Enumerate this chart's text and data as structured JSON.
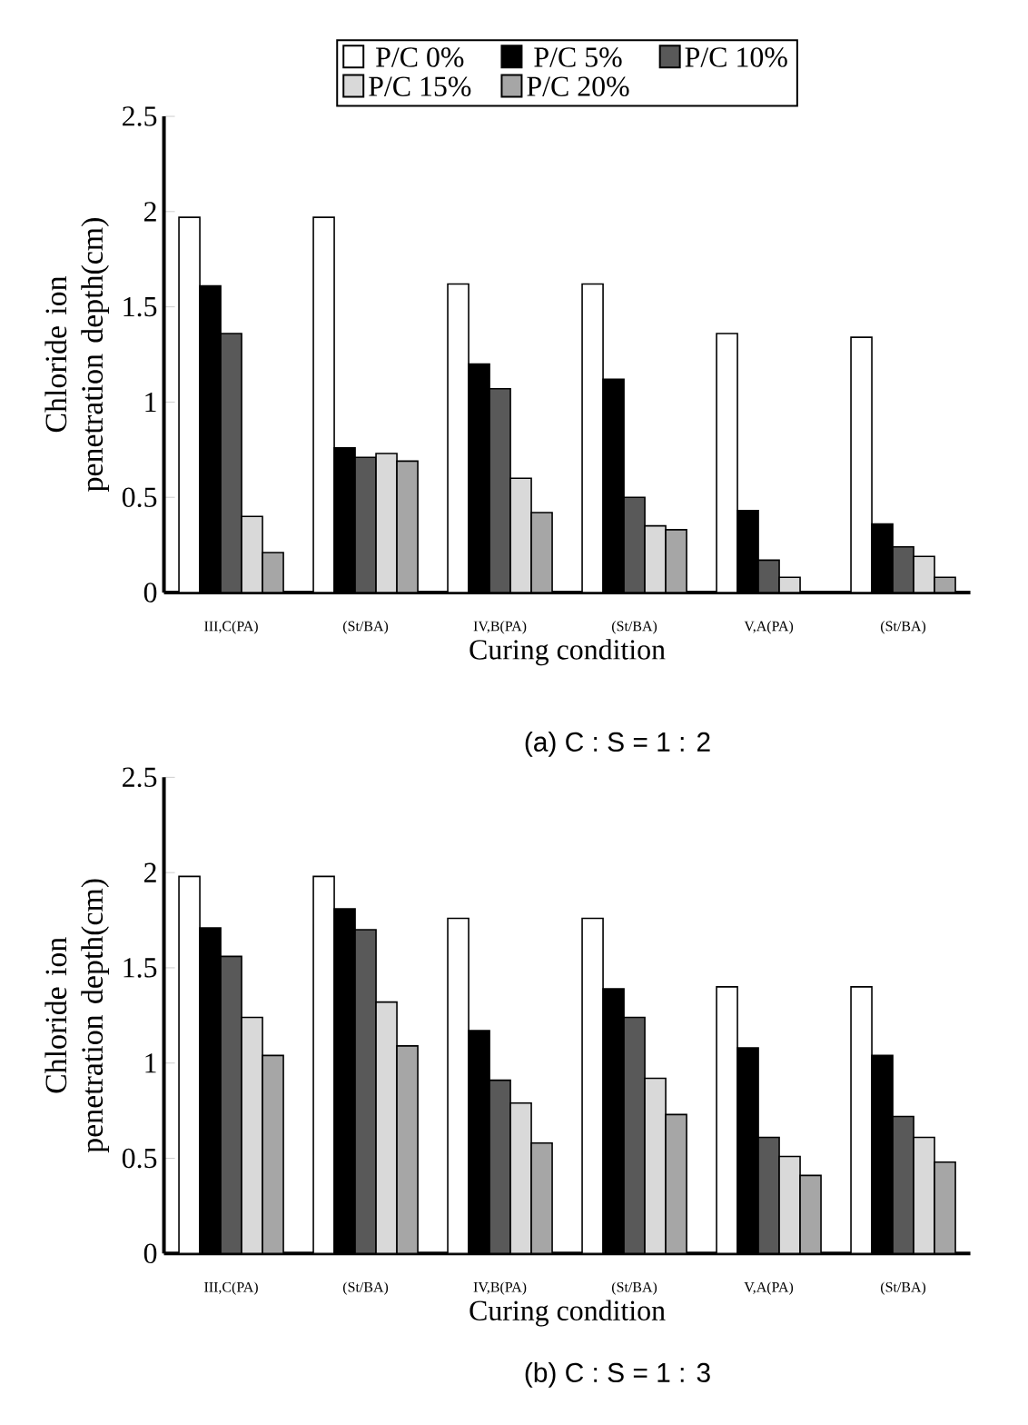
{
  "chart_data": [
    {
      "type": "bar",
      "title": "(a) C : S = 1 : 2",
      "xlabel": "Curing condition",
      "ylabel": "Chloride ion penetration depth(cm)",
      "categories": [
        "III,C(PA)",
        "(St/BA)",
        "IV,B(PA)",
        "(St/BA)",
        "V,A(PA)",
        "(St/BA)"
      ],
      "series": [
        {
          "name": "P/C 0%",
          "color": "#ffffff",
          "values": [
            1.97,
            1.97,
            1.62,
            1.62,
            1.36,
            1.34
          ]
        },
        {
          "name": "P/C 5%",
          "color": "#000000",
          "values": [
            1.61,
            0.76,
            1.2,
            1.12,
            0.43,
            0.36
          ]
        },
        {
          "name": "P/C 10%",
          "color": "#595959",
          "values": [
            1.36,
            0.71,
            1.07,
            0.5,
            0.17,
            0.24
          ]
        },
        {
          "name": "P/C 15%",
          "color": "#d9d9d9",
          "values": [
            0.4,
            0.73,
            0.6,
            0.35,
            0.08,
            0.19
          ]
        },
        {
          "name": "P/C 20%",
          "color": "#a6a6a6",
          "values": [
            0.21,
            0.69,
            0.42,
            0.33,
            null,
            0.08
          ]
        }
      ],
      "ylim": [
        0,
        2.5
      ],
      "yticks": [
        0,
        0.5,
        1,
        1.5,
        2,
        2.5
      ],
      "legend": "top"
    },
    {
      "type": "bar",
      "title": "(b) C : S = 1 : 3",
      "xlabel": "Curing condition",
      "ylabel": "Chloride ion penetration depth(cm)",
      "categories": [
        "III,C(PA)",
        "(St/BA)",
        "IV,B(PA)",
        "(St/BA)",
        "V,A(PA)",
        "(St/BA)"
      ],
      "series": [
        {
          "color": "#ffffff",
          "values": [
            1.98,
            1.98,
            1.76,
            1.76,
            1.4,
            1.4
          ]
        },
        {
          "color": "#000000",
          "values": [
            1.71,
            1.81,
            1.17,
            1.39,
            1.08,
            1.04
          ]
        },
        {
          "color": "#595959",
          "values": [
            1.56,
            1.7,
            0.91,
            1.24,
            0.61,
            0.72
          ]
        },
        {
          "color": "#d9d9d9",
          "values": [
            1.24,
            1.32,
            0.79,
            0.92,
            0.51,
            0.61
          ]
        },
        {
          "color": "#a6a6a6",
          "values": [
            1.04,
            1.09,
            0.58,
            0.73,
            0.41,
            0.48
          ]
        }
      ],
      "ylim": [
        0,
        2.5
      ],
      "yticks": [
        0,
        0.5,
        1,
        1.5,
        2,
        2.5
      ]
    }
  ]
}
